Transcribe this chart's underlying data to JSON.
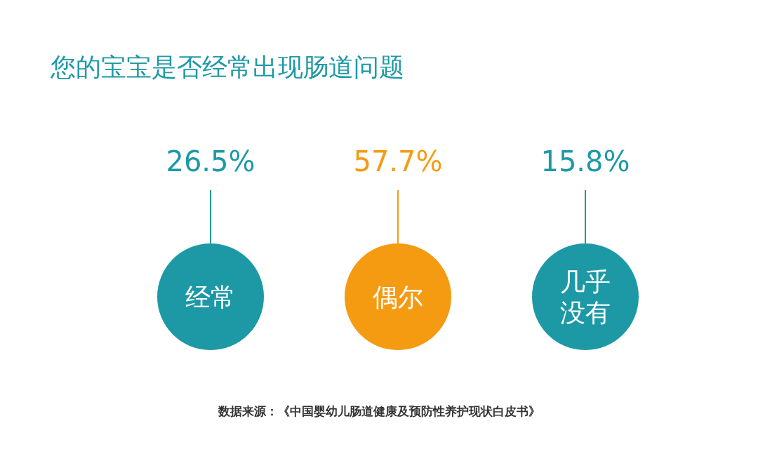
{
  "chart_data": {
    "type": "other",
    "title": "您的宝宝是否经常出现肠道问题",
    "categories": [
      "经常",
      "偶尔",
      "几乎没有"
    ],
    "values": [
      26.5,
      57.7,
      15.8
    ],
    "value_labels": [
      "26.5%",
      "57.7%",
      "15.8%"
    ],
    "colors": [
      "#1d99a6",
      "#f59b12",
      "#1d99a6"
    ],
    "annotations": [
      "数据来源：《中国婴幼儿肠道健康及预防性养护现状白皮书》"
    ]
  }
}
